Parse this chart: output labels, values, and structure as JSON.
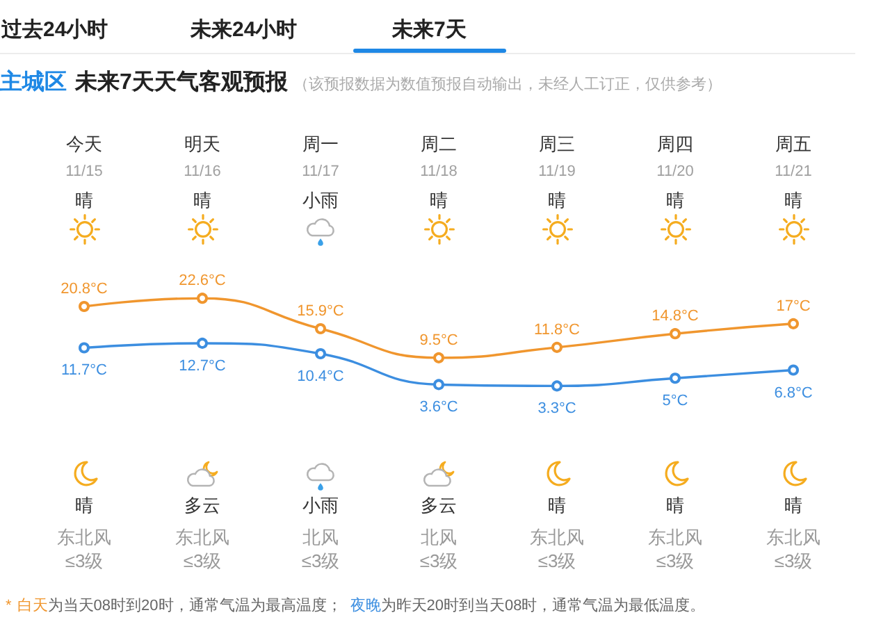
{
  "chart_data": {
    "type": "line",
    "title": "未来7天天气客观预报",
    "subtitle": "（该预报数据为数值预报自动输出，未经人工订正，仅供参考）",
    "categories": [
      "今天\n11/15\n晴",
      "明天\n11/16\n晴",
      "周一\n11/17\n小雨",
      "周二\n11/18\n晴",
      "周三\n11/19\n晴",
      "周四\n11/20\n晴",
      "周五\n11/21\n晴"
    ],
    "series": [
      {
        "name": "白天",
        "color": "#f0962e",
        "values": [
          20.8,
          22.6,
          15.9,
          9.5,
          11.8,
          14.8,
          17
        ],
        "value_labels": [
          "20.8°C",
          "22.6°C",
          "15.9°C",
          "9.5°C",
          "11.8°C",
          "14.8°C",
          "17°C"
        ]
      },
      {
        "name": "夜晚",
        "color": "#3c8ee0",
        "values": [
          11.7,
          12.7,
          10.4,
          3.6,
          3.3,
          5,
          6.8
        ],
        "value_labels": [
          "11.7°C",
          "12.7°C",
          "10.4°C",
          "3.6°C",
          "3.3°C",
          "5°C",
          "6.8°C"
        ]
      }
    ],
    "marker": "circle",
    "tick_labels": "x",
    "annotations": [
      "过去24小时",
      "未来24小时",
      "未来7天",
      "主城区",
      "晴",
      "东北风",
      "≤3级",
      "多云",
      "东北风",
      "≤3级",
      "小雨",
      "北风",
      "≤3级",
      "多云",
      "北风",
      "≤3级",
      "晴",
      "东北风",
      "≤3级",
      "晴",
      "东北风",
      "≤3级",
      "晴",
      "东北风",
      "≤3级",
      "*",
      "为当天08时到20时，通常气温为最高温度；",
      "为昨天20时到当天08时，通常气温为最低温度。"
    ]
  }
}
